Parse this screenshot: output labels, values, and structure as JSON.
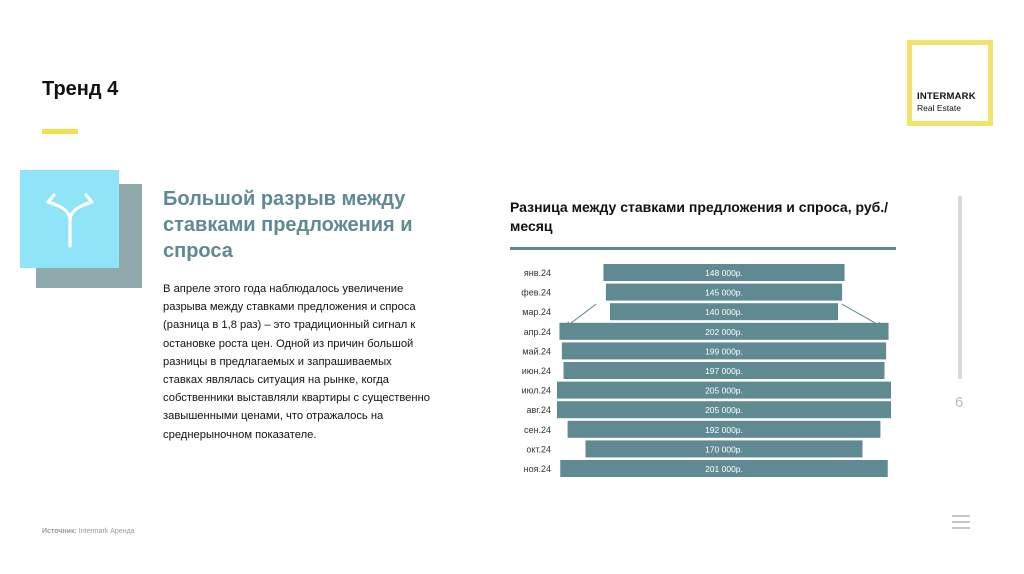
{
  "slide": {
    "title": "Тренд 4",
    "page_number": "6",
    "source_label": "Источник:",
    "source_value": "Intermark Аренда"
  },
  "logo": {
    "main": "INTERMARK",
    "sub": "Real Estate"
  },
  "section": {
    "icon": "split-arrows-icon",
    "subtitle": "Большой разрыв между ставками предложения и спроса",
    "body": "В апреле этого года наблюдалось увеличение разрыва между ставками предложения и спроса (разница в 1,8 раз) – это традиционный сигнал к остановке роста цен. Одной из причин большой разницы в предлагаемых и запрашиваемых ставках являлась ситуация на рынке, когда собственники выставляли квартиры с существенно завышенными ценами, что отражалось на среднерыночном показателе."
  },
  "colors": {
    "accent_yellow": "#f2df4a",
    "teal": "#5f8a91",
    "icon_bg": "#8fe4f7"
  },
  "chart_data": {
    "type": "bar",
    "orientation": "horizontal-centered",
    "title": "Разница между ставками предложения и спроса, руб./месяц",
    "categories": [
      "янв.24",
      "фев.24",
      "мар.24",
      "апр.24",
      "май.24",
      "июн.24",
      "июл.24",
      "авг.24",
      "сен.24",
      "окт.24",
      "ноя.24"
    ],
    "values": [
      148000,
      145000,
      140000,
      202000,
      199000,
      197000,
      205000,
      205000,
      192000,
      170000,
      201000
    ],
    "labels": [
      "148 000р.",
      "145 000р.",
      "140 000р.",
      "202 000р.",
      "199 000р.",
      "197 000р.",
      "205 000р.",
      "205 000р.",
      "192 000р.",
      "170 000р.",
      "201 000р."
    ],
    "bar_color": "#5f8a91",
    "label_color": "#ffffff",
    "annotation": "arrows indicating widening gap from март to апрель"
  }
}
